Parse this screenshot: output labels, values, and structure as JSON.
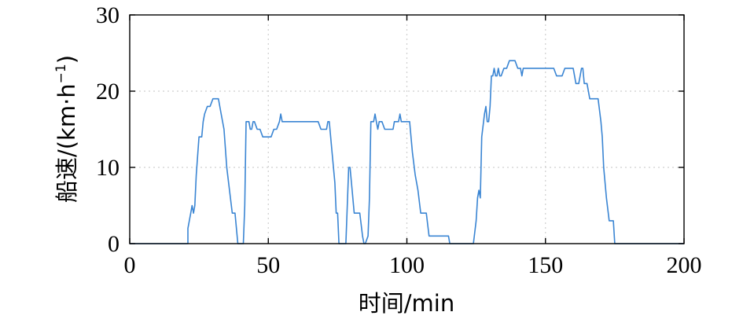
{
  "chart_data": {
    "type": "line",
    "title": "",
    "xlabel": "时间/min",
    "ylabel": "船速/(km·h",
    "ylabel_sup": "−1",
    "ylabel_close": ")",
    "xlim": [
      0,
      200
    ],
    "ylim": [
      0,
      30
    ],
    "xticks": [
      0,
      50,
      100,
      150,
      200
    ],
    "yticks": [
      0,
      10,
      20,
      30
    ],
    "xtick_labels": [
      "0",
      "50",
      "100",
      "150",
      "200"
    ],
    "ytick_labels": [
      "0",
      "10",
      "20",
      "30"
    ],
    "grid": true,
    "series": [
      {
        "color": "#3a85d3",
        "points": [
          [
            0,
            0
          ],
          [
            21,
            0
          ],
          [
            21,
            2
          ],
          [
            21.5,
            3
          ],
          [
            22,
            4
          ],
          [
            22.5,
            5
          ],
          [
            23,
            4
          ],
          [
            23.5,
            5
          ],
          [
            24,
            9
          ],
          [
            25,
            14
          ],
          [
            26,
            14
          ],
          [
            26.5,
            16
          ],
          [
            27,
            17
          ],
          [
            28,
            18
          ],
          [
            29,
            18
          ],
          [
            30,
            19
          ],
          [
            32,
            19
          ],
          [
            33,
            17
          ],
          [
            34,
            15
          ],
          [
            35,
            10
          ],
          [
            36,
            7
          ],
          [
            37,
            4
          ],
          [
            38,
            4
          ],
          [
            39,
            0
          ],
          [
            41,
            0
          ],
          [
            41.5,
            5
          ],
          [
            42,
            16
          ],
          [
            43,
            16
          ],
          [
            43.5,
            15
          ],
          [
            44,
            15
          ],
          [
            44.5,
            16
          ],
          [
            45,
            16
          ],
          [
            46,
            15
          ],
          [
            47,
            15
          ],
          [
            48,
            14
          ],
          [
            51,
            14
          ],
          [
            52,
            15
          ],
          [
            53,
            15
          ],
          [
            54,
            16
          ],
          [
            54.5,
            17
          ],
          [
            55,
            16
          ],
          [
            68,
            16
          ],
          [
            69,
            15
          ],
          [
            71,
            15
          ],
          [
            71.5,
            16
          ],
          [
            72,
            16
          ],
          [
            73,
            12
          ],
          [
            74,
            8
          ],
          [
            74.5,
            4
          ],
          [
            75,
            4
          ],
          [
            75.5,
            0
          ],
          [
            78,
            0
          ],
          [
            78.5,
            5
          ],
          [
            79,
            10
          ],
          [
            79.5,
            10
          ],
          [
            80,
            8
          ],
          [
            81,
            4
          ],
          [
            83,
            4
          ],
          [
            84,
            1
          ],
          [
            84.5,
            0
          ],
          [
            85,
            0
          ],
          [
            86,
            1
          ],
          [
            86.5,
            6
          ],
          [
            87,
            16
          ],
          [
            88,
            16
          ],
          [
            88.5,
            17
          ],
          [
            89,
            16
          ],
          [
            89.5,
            15
          ],
          [
            90,
            16
          ],
          [
            91,
            16
          ],
          [
            92,
            15
          ],
          [
            95,
            15
          ],
          [
            95.5,
            16
          ],
          [
            96,
            16
          ],
          [
            97,
            16
          ],
          [
            97.5,
            17
          ],
          [
            98,
            16
          ],
          [
            101,
            16
          ],
          [
            102,
            12
          ],
          [
            103,
            9
          ],
          [
            104,
            7
          ],
          [
            105,
            4
          ],
          [
            107,
            4
          ],
          [
            108,
            1
          ],
          [
            115,
            1
          ],
          [
            115.5,
            0
          ],
          [
            124,
            0
          ],
          [
            125,
            3
          ],
          [
            125.5,
            6
          ],
          [
            126,
            7
          ],
          [
            126.5,
            6
          ],
          [
            127,
            14
          ],
          [
            128,
            17
          ],
          [
            128.5,
            18
          ],
          [
            129,
            16
          ],
          [
            129.5,
            16
          ],
          [
            130,
            18
          ],
          [
            130.5,
            22
          ],
          [
            131,
            22
          ],
          [
            131.5,
            23
          ],
          [
            132,
            22
          ],
          [
            132.5,
            22
          ],
          [
            133,
            23
          ],
          [
            133.5,
            22
          ],
          [
            134,
            22
          ],
          [
            135,
            23
          ],
          [
            136,
            23
          ],
          [
            137,
            24
          ],
          [
            139,
            24
          ],
          [
            140,
            23
          ],
          [
            141,
            23
          ],
          [
            141.5,
            22
          ],
          [
            142,
            23
          ],
          [
            153,
            23
          ],
          [
            154,
            22
          ],
          [
            156,
            22
          ],
          [
            157,
            23
          ],
          [
            160,
            23
          ],
          [
            161,
            21
          ],
          [
            162,
            21
          ],
          [
            163,
            23
          ],
          [
            163.5,
            23
          ],
          [
            164,
            21
          ],
          [
            165,
            21
          ],
          [
            166,
            19
          ],
          [
            169,
            19
          ],
          [
            170,
            16
          ],
          [
            170.5,
            14
          ],
          [
            171,
            10
          ],
          [
            172,
            6
          ],
          [
            173,
            3
          ],
          [
            174,
            3
          ],
          [
            174.5,
            3
          ],
          [
            175,
            0
          ],
          [
            200,
            0
          ]
        ]
      }
    ]
  }
}
